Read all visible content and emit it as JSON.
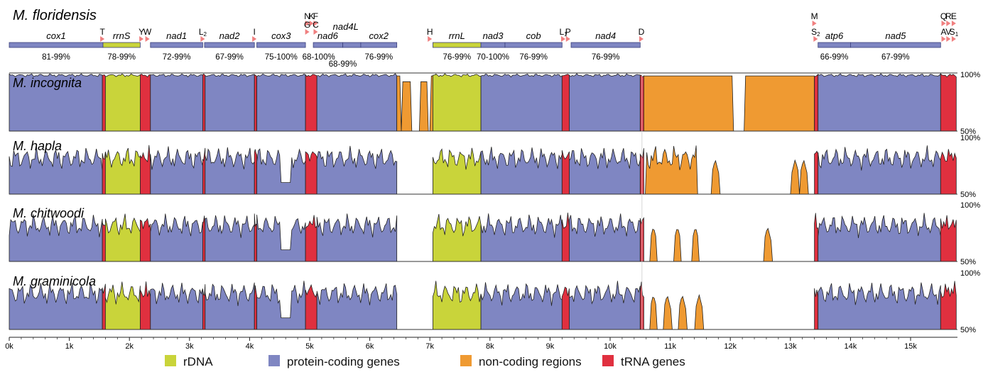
{
  "reference": "M. floridensis",
  "scale": {
    "length_k": 15.8
  },
  "genes": [
    {
      "name": "cox1",
      "start": 0.0,
      "end": 1.56,
      "type": "protein",
      "identity": "81-99%"
    },
    {
      "name": "rrnS",
      "start": 1.56,
      "end": 2.18,
      "type": "rDNA",
      "identity": "78-99%"
    },
    {
      "name": "nad1",
      "start": 2.35,
      "end": 3.22,
      "type": "protein",
      "identity": "72-99%"
    },
    {
      "name": "nad2",
      "start": 3.25,
      "end": 4.08,
      "type": "protein",
      "identity": "67-99%"
    },
    {
      "name": "cox3",
      "start": 4.12,
      "end": 4.93,
      "type": "protein",
      "identity": "75-100%"
    },
    {
      "name": "nad6",
      "start": 5.06,
      "end": 5.55,
      "type": "protein",
      "identity": "68-100%"
    },
    {
      "name": "nad4L",
      "start": 5.55,
      "end": 5.85,
      "type": "protein",
      "identity": "68-99%"
    },
    {
      "name": "cox2",
      "start": 5.85,
      "end": 6.45,
      "type": "protein",
      "identity": "76-99%"
    },
    {
      "name": "rrnL",
      "start": 7.05,
      "end": 7.85,
      "type": "rDNA",
      "identity": "76-99%"
    },
    {
      "name": "nad3",
      "start": 7.85,
      "end": 8.25,
      "type": "protein",
      "identity": "70-100%"
    },
    {
      "name": "cob",
      "start": 8.25,
      "end": 9.2,
      "type": "protein",
      "identity": "76-99%"
    },
    {
      "name": "nad4",
      "start": 9.35,
      "end": 10.5,
      "type": "protein",
      "identity": "76-99%"
    },
    {
      "name": "atp6",
      "start": 13.46,
      "end": 14.0,
      "type": "protein",
      "identity": "66-99%"
    },
    {
      "name": "nad5",
      "start": 14.0,
      "end": 15.5,
      "type": "protein",
      "identity": "67-99%"
    }
  ],
  "trnas": [
    {
      "label": "T",
      "pos": 1.55,
      "row": 0
    },
    {
      "label": "Y",
      "pos": 2.2,
      "row": 0
    },
    {
      "label": "W",
      "pos": 2.3,
      "row": 0
    },
    {
      "label": "L2",
      "pos": 3.22,
      "row": 0
    },
    {
      "label": "I",
      "pos": 4.08,
      "row": 0
    },
    {
      "label": "N",
      "pos": 4.96,
      "row": 2
    },
    {
      "label": "K",
      "pos": 5.03,
      "row": 2
    },
    {
      "label": "F",
      "pos": 5.1,
      "row": 2
    },
    {
      "label": "G",
      "pos": 4.96,
      "row": 1
    },
    {
      "label": "C",
      "pos": 5.1,
      "row": 1
    },
    {
      "label": "H",
      "pos": 7.0,
      "row": 0
    },
    {
      "label": "L1",
      "pos": 9.22,
      "row": 0
    },
    {
      "label": "P",
      "pos": 9.3,
      "row": 0
    },
    {
      "label": "D",
      "pos": 10.52,
      "row": 0
    },
    {
      "label": "M",
      "pos": 13.4,
      "row": 2
    },
    {
      "label": "S2",
      "pos": 13.42,
      "row": 0
    },
    {
      "label": "Q",
      "pos": 15.55,
      "row": 2
    },
    {
      "label": "R",
      "pos": 15.63,
      "row": 2
    },
    {
      "label": "E",
      "pos": 15.72,
      "row": 2
    },
    {
      "label": "A",
      "pos": 15.55,
      "row": 0
    },
    {
      "label": "V",
      "pos": 15.63,
      "row": 0
    },
    {
      "label": "S1",
      "pos": 15.72,
      "row": 0
    }
  ],
  "tracks": [
    {
      "name": "M. incognita",
      "label_high": "100%",
      "label_low": "50%"
    },
    {
      "name": "M. hapla",
      "label_high": "100%",
      "label_low": "50%"
    },
    {
      "name": "M. chitwoodi",
      "label_high": "100%",
      "label_low": "50%"
    },
    {
      "name": "M. graminicola",
      "label_high": "100%",
      "label_low": "50%"
    }
  ],
  "axis": {
    "ticks": [
      "0k",
      "1k",
      "2k",
      "3k",
      "4k",
      "5k",
      "6k",
      "7k",
      "8k",
      "9k",
      "10k",
      "11k",
      "12k",
      "13k",
      "14k",
      "15k"
    ]
  },
  "colors": {
    "rDNA": "#c9d43a",
    "protein": "#7f86c2",
    "noncoding": "#ef9a32",
    "trna": "#e0303f",
    "arrow": "#f08080"
  },
  "legend": [
    {
      "label": "rDNA",
      "color": "#c9d43a"
    },
    {
      "label": "protein-coding genes",
      "color": "#7f86c2"
    },
    {
      "label": "non-coding regions",
      "color": "#ef9a32"
    },
    {
      "label": "tRNA genes",
      "color": "#e0303f"
    }
  ]
}
